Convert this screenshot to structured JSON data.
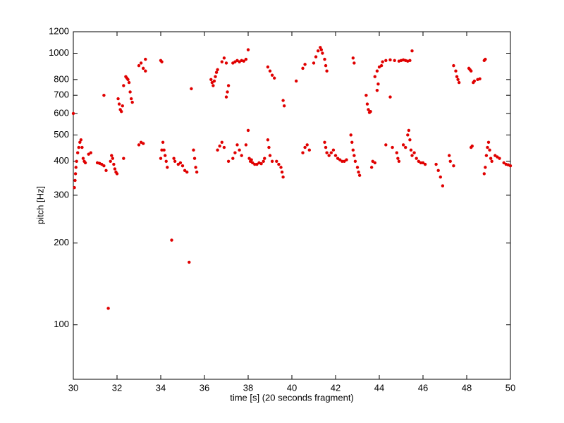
{
  "chart_data": {
    "type": "scatter",
    "x_label": "time [s] (20 seconds fragment)",
    "y_label": "pitch [Hz]",
    "color": "#e00000",
    "xlim": [
      30,
      50
    ],
    "xticks": [
      30,
      32,
      34,
      36,
      38,
      40,
      42,
      44,
      46,
      48,
      50
    ],
    "ylim": [
      63,
      1200
    ],
    "yticks": [
      100,
      200,
      300,
      400,
      500,
      600,
      700,
      800,
      1000,
      1200
    ],
    "y_log": true,
    "grid": false,
    "x": [
      30.0,
      30.05,
      30.08,
      30.1,
      30.12,
      30.15,
      30.2,
      30.25,
      30.3,
      30.35,
      30.4,
      30.45,
      30.5,
      30.55,
      30.7,
      30.8,
      31.1,
      31.2,
      31.3,
      31.4,
      31.5,
      31.4,
      31.6,
      31.7,
      31.75,
      31.8,
      31.85,
      31.9,
      31.95,
      32.0,
      32.05,
      32.1,
      32.15,
      32.2,
      32.25,
      32.3,
      32.3,
      32.4,
      32.45,
      32.5,
      32.55,
      32.6,
      32.65,
      32.7,
      33.0,
      33.1,
      33.2,
      33.3,
      33.3,
      33.0,
      33.1,
      33.2,
      34.0,
      34.05,
      34.0,
      34.05,
      34.1,
      34.15,
      34.2,
      34.25,
      34.3,
      34.5,
      34.6,
      34.65,
      34.8,
      34.9,
      35.0,
      35.1,
      35.2,
      35.3,
      35.4,
      35.5,
      35.55,
      35.6,
      35.65,
      36.3,
      36.35,
      36.4,
      36.45,
      36.5,
      36.55,
      36.6,
      36.6,
      36.7,
      36.8,
      36.9,
      36.8,
      36.9,
      37.0,
      37.0,
      37.05,
      37.1,
      37.1,
      37.3,
      37.4,
      37.5,
      37.6,
      37.7,
      37.8,
      37.9,
      38.0,
      37.3,
      37.4,
      37.5,
      37.6,
      37.7,
      37.9,
      38.0,
      38.05,
      38.1,
      38.15,
      38.2,
      38.3,
      38.4,
      38.5,
      38.6,
      38.7,
      38.75,
      38.9,
      39.0,
      39.1,
      39.2,
      38.9,
      38.95,
      39.0,
      39.1,
      39.3,
      39.4,
      39.5,
      39.55,
      39.6,
      39.6,
      39.65,
      40.2,
      40.5,
      40.6,
      40.5,
      40.6,
      40.7,
      40.8,
      41.0,
      41.1,
      41.2,
      41.3,
      41.35,
      41.4,
      41.5,
      41.55,
      41.6,
      41.5,
      41.55,
      41.6,
      41.7,
      41.8,
      41.9,
      42.0,
      42.1,
      42.2,
      42.3,
      42.4,
      42.5,
      42.7,
      42.75,
      42.8,
      42.85,
      42.9,
      43.0,
      43.05,
      43.1,
      42.8,
      42.85,
      43.4,
      43.45,
      43.5,
      43.55,
      43.6,
      43.65,
      43.7,
      43.8,
      43.8,
      43.9,
      44.0,
      43.9,
      43.95,
      44.1,
      44.15,
      44.3,
      44.5,
      44.7,
      44.9,
      45.0,
      45.1,
      45.2,
      45.3,
      45.4,
      45.5,
      44.5,
      44.3,
      44.6,
      44.8,
      44.85,
      44.9,
      45.1,
      45.2,
      45.3,
      45.35,
      45.4,
      45.45,
      45.5,
      45.6,
      45.7,
      45.8,
      45.9,
      46.0,
      46.1,
      46.6,
      46.7,
      46.8,
      46.9,
      47.2,
      47.25,
      47.4,
      47.4,
      47.5,
      47.55,
      47.6,
      47.65,
      48.1,
      48.15,
      48.2,
      48.3,
      48.35,
      48.5,
      48.6,
      48.2,
      48.25,
      48.8,
      48.85,
      48.8,
      48.85,
      48.9,
      48.95,
      49.0,
      49.05,
      49.1,
      49.15,
      49.3,
      49.4,
      49.5,
      49.7,
      49.8,
      49.9,
      50.0
    ],
    "values": [
      600,
      320,
      340,
      360,
      380,
      400,
      430,
      450,
      470,
      480,
      450,
      410,
      400,
      395,
      425,
      430,
      395,
      393,
      390,
      385,
      370,
      700,
      115,
      400,
      420,
      410,
      390,
      375,
      365,
      360,
      680,
      650,
      620,
      610,
      640,
      410,
      760,
      820,
      810,
      800,
      780,
      720,
      680,
      660,
      900,
      920,
      880,
      950,
      860,
      460,
      470,
      465,
      940,
      930,
      410,
      440,
      470,
      440,
      420,
      400,
      380,
      205,
      410,
      400,
      390,
      395,
      385,
      370,
      365,
      170,
      740,
      440,
      410,
      380,
      365,
      800,
      780,
      760,
      790,
      820,
      850,
      870,
      440,
      455,
      470,
      450,
      930,
      960,
      920,
      690,
      720,
      760,
      400,
      920,
      930,
      940,
      930,
      940,
      935,
      950,
      1030,
      410,
      430,
      460,
      440,
      420,
      460,
      520,
      410,
      400,
      405,
      395,
      390,
      390,
      395,
      392,
      400,
      410,
      890,
      860,
      830,
      810,
      480,
      450,
      420,
      400,
      400,
      390,
      380,
      365,
      350,
      670,
      640,
      790,
      880,
      910,
      430,
      450,
      460,
      440,
      920,
      970,
      1020,
      1050,
      1030,
      1000,
      950,
      900,
      860,
      470,
      450,
      430,
      420,
      430,
      440,
      420,
      410,
      405,
      400,
      400,
      405,
      500,
      470,
      440,
      420,
      400,
      380,
      365,
      355,
      960,
      920,
      700,
      650,
      620,
      605,
      610,
      380,
      400,
      395,
      820,
      860,
      890,
      730,
      770,
      900,
      930,
      940,
      945,
      940,
      935,
      940,
      945,
      940,
      935,
      940,
      1020,
      690,
      460,
      450,
      430,
      410,
      400,
      460,
      450,
      500,
      520,
      480,
      440,
      420,
      430,
      410,
      400,
      395,
      395,
      390,
      390,
      370,
      350,
      325,
      420,
      400,
      385,
      900,
      860,
      820,
      800,
      780,
      880,
      870,
      860,
      780,
      790,
      800,
      805,
      450,
      455,
      940,
      950,
      360,
      380,
      420,
      450,
      470,
      440,
      410,
      400,
      420,
      415,
      410,
      395,
      390,
      388,
      385
    ]
  }
}
